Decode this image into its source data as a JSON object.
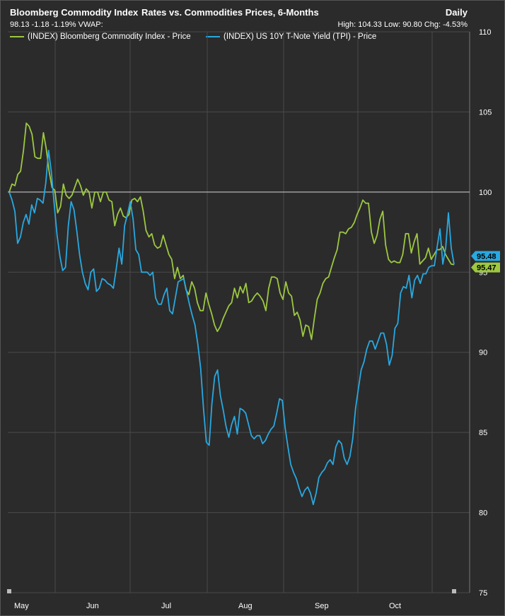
{
  "header": {
    "title_left": "Bloomberg Commodity Index",
    "title_center": "Rates vs. Commodities Prices, 6-Months",
    "period": "Daily",
    "stats": "98.13 -1.18 -1.19%  VWAP:",
    "hilo": "High: 104.33 Low: 90.80 Chg: -4.53%"
  },
  "colors": {
    "bcom": "#9dc840",
    "tnx": "#29a8e0",
    "background": "#2b2b2b",
    "grid": "#555555",
    "baseline": "#cfcfcf"
  },
  "chart_data": {
    "type": "line",
    "x_labels": [
      "May",
      "Jun",
      "Jul",
      "Aug",
      "Sep",
      "Oct"
    ],
    "ylim": [
      75,
      110
    ],
    "yticks": [
      75,
      80,
      85,
      90,
      95,
      100,
      105,
      110
    ],
    "baseline": 100,
    "grid": true,
    "legend_position": "top-left",
    "series": [
      {
        "name": "(INDEX) Bloomberg Commodity Index - Price",
        "color": "#9dc840",
        "last_value": "95.47",
        "values": [
          100.0,
          100.5,
          100.4,
          101.1,
          101.3,
          102.6,
          104.3,
          104.1,
          103.6,
          102.2,
          102.1,
          102.1,
          103.7,
          102.7,
          101.3,
          100.3,
          100.1,
          98.7,
          99.1,
          100.5,
          99.8,
          99.6,
          99.8,
          100.3,
          100.8,
          100.4,
          99.8,
          100.2,
          100.0,
          99.0,
          100.0,
          100.0,
          99.4,
          100.0,
          100.0,
          99.5,
          99.4,
          97.9,
          98.6,
          99.0,
          98.5,
          98.4,
          98.6,
          99.5,
          99.6,
          99.4,
          99.7,
          98.8,
          97.6,
          97.2,
          97.4,
          96.7,
          96.5,
          96.6,
          97.3,
          96.7,
          96.1,
          95.8,
          94.6,
          95.3,
          94.6,
          94.8,
          93.9,
          93.6,
          94.4,
          94.0,
          93.1,
          92.6,
          92.6,
          93.7,
          93.0,
          92.4,
          91.7,
          91.3,
          91.6,
          92.1,
          92.5,
          92.9,
          93.1,
          94.0,
          93.4,
          94.1,
          93.7,
          94.3,
          93.1,
          93.2,
          93.5,
          93.7,
          93.5,
          93.2,
          92.6,
          94.0,
          94.7,
          94.7,
          94.6,
          93.7,
          93.3,
          94.4,
          93.7,
          93.5,
          92.3,
          92.5,
          92.0,
          91.0,
          91.7,
          91.6,
          90.8,
          92.1,
          93.3,
          93.7,
          94.3,
          94.6,
          94.7,
          95.3,
          95.9,
          96.4,
          97.5,
          97.5,
          97.4,
          97.7,
          97.8,
          98.1,
          98.6,
          99.0,
          99.5,
          99.3,
          99.3,
          97.5,
          96.8,
          97.3,
          98.3,
          98.8,
          96.7,
          95.8,
          95.6,
          95.7,
          95.6,
          95.6,
          96.1,
          97.4,
          97.4,
          96.2,
          96.9,
          97.4,
          95.5,
          95.7,
          95.9,
          96.5,
          95.8,
          96.1,
          96.4,
          96.4,
          96.6,
          96.1,
          95.8,
          95.5,
          95.47
        ],
        "x_start_date": "2023-04-27"
      },
      {
        "name": "(INDEX) US 10Y T-Note Yield (TPI) - Price",
        "color": "#29a8e0",
        "last_value": "95.48",
        "values": [
          100.0,
          99.5,
          98.8,
          96.8,
          97.2,
          98.1,
          98.6,
          98.0,
          99.2,
          98.7,
          99.6,
          99.5,
          99.3,
          100.6,
          102.6,
          101.2,
          99.2,
          97.3,
          96.0,
          95.1,
          95.3,
          97.9,
          99.4,
          98.9,
          97.6,
          96.1,
          95.0,
          94.3,
          93.9,
          95.0,
          95.2,
          93.8,
          94.0,
          94.6,
          94.5,
          94.3,
          94.2,
          94.0,
          95.2,
          96.5,
          95.5,
          97.9,
          98.6,
          99.4,
          98.3,
          96.4,
          96.1,
          95.0,
          95.0,
          95.0,
          94.8,
          95.0,
          93.4,
          93.0,
          93.0,
          93.6,
          94.0,
          92.6,
          92.4,
          93.4,
          94.4,
          94.5,
          94.6,
          93.8,
          93.0,
          92.3,
          91.7,
          90.5,
          89.0,
          86.5,
          84.4,
          84.2,
          86.8,
          88.5,
          88.9,
          87.3,
          86.4,
          85.4,
          84.7,
          85.5,
          86.0,
          84.9,
          86.5,
          86.4,
          86.2,
          85.5,
          84.8,
          84.6,
          84.8,
          84.8,
          84.3,
          84.5,
          84.9,
          85.2,
          85.4,
          86.2,
          87.1,
          87.0,
          85.3,
          84.1,
          83.0,
          82.5,
          82.1,
          81.5,
          81.0,
          81.4,
          81.6,
          81.2,
          80.5,
          81.2,
          82.2,
          82.5,
          82.7,
          83.1,
          83.3,
          83.0,
          84.1,
          84.5,
          84.3,
          83.4,
          83.0,
          83.5,
          84.6,
          86.5,
          87.7,
          88.9,
          89.4,
          90.2,
          90.7,
          90.7,
          90.2,
          90.7,
          91.2,
          91.2,
          90.5,
          89.2,
          89.8,
          91.5,
          91.8,
          93.7,
          94.1,
          94.0,
          94.8,
          93.4,
          94.5,
          94.8,
          94.3,
          94.9,
          94.9,
          95.3,
          95.4,
          95.4,
          96.6,
          97.7,
          95.5,
          96.5,
          98.7,
          96.5,
          95.48
        ],
        "x_start_date": "2023-04-27"
      }
    ]
  }
}
